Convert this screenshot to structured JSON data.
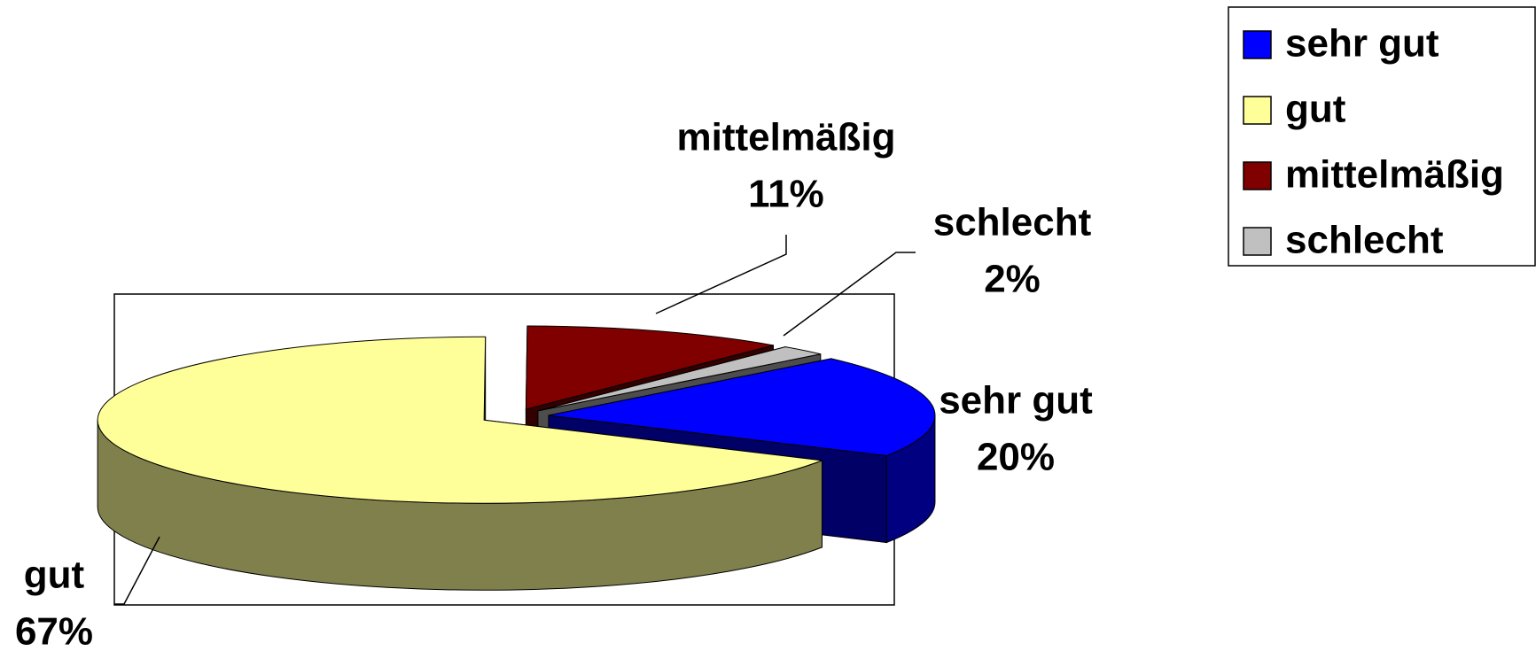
{
  "chart_data": {
    "type": "pie3d",
    "categories": [
      "sehr gut",
      "gut",
      "mittelmäßig",
      "schlecht"
    ],
    "values": [
      20,
      67,
      11,
      2
    ],
    "value_labels": [
      "20%",
      "67%",
      "11%",
      "2%"
    ],
    "colors": [
      "#0000ff",
      "#ffff99",
      "#800000",
      "#c0c0c0"
    ],
    "legend": "top-right"
  }
}
